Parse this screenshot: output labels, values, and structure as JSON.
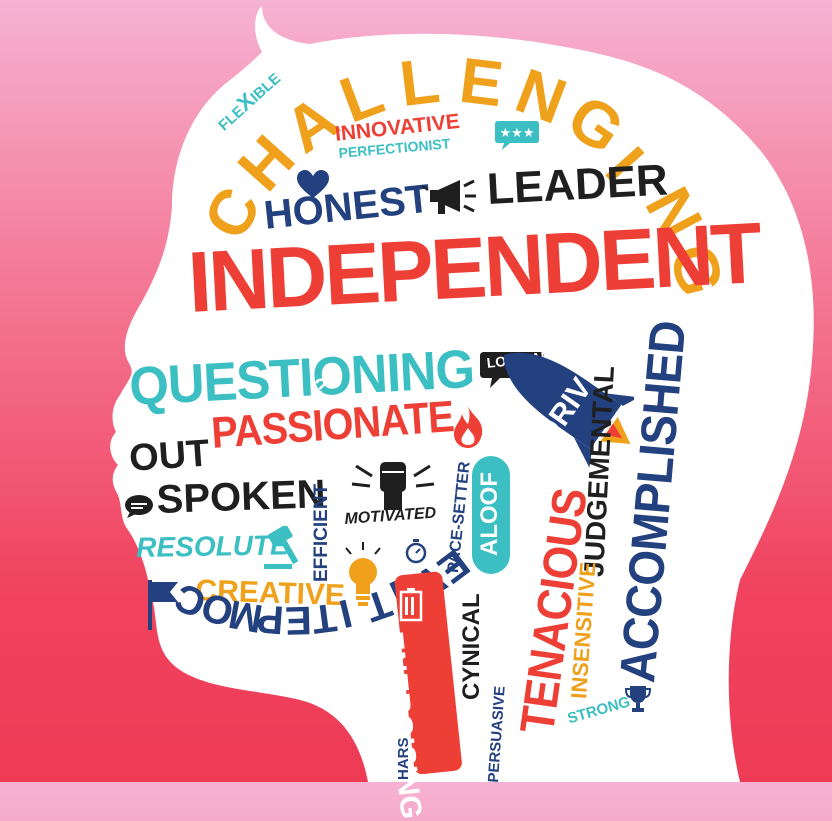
{
  "words": {
    "challenging": "CHALLENGING",
    "flexible_a": "FLE",
    "flexible_x": "X",
    "flexible_b": "IBLE",
    "innovative": "INNOVATIVE",
    "perfectionist": "PERFECTIONIST",
    "honest": "HONEST",
    "leader": "LEADER",
    "independent": "INDEPENDENT",
    "questioning": "QUESTIONING",
    "logical": "LOGICAL",
    "driven": "DRIVEN",
    "judgemental": "JUDGEMENTAL",
    "accomplished": "ACCOMPLISHED",
    "out": "OUT",
    "passionate": "PASSIONATE",
    "spoken": "SPOKEN",
    "efficient": "EFFICIENT",
    "motivated": "MOTIVATED",
    "pace_setter": "PACE-SETTER",
    "aloof": "ALOOF",
    "tenacious": "TENACIOUS",
    "resolute": "RESOLUTE",
    "creative": "CREATIVE",
    "cynical": "CYNICAL",
    "insensitive": "INSENSITIVE",
    "competitive": "COMPETITIVE",
    "energising": "ENERGISING",
    "persuasive": "PERSUASIVE",
    "strong": "STRONG",
    "harsh": "HARS"
  },
  "icons": {
    "heart": "heart-icon",
    "stars_bubble": "stars-speech-bubble-icon",
    "megaphone": "megaphone-icon",
    "rocket": "rocket-icon",
    "flame": "flame-icon",
    "fist": "raised-fist-icon",
    "stopwatch": "stopwatch-icon",
    "gavel": "gavel-icon",
    "lightbulb": "lightbulb-icon",
    "flag": "flag-icon",
    "battery": "battery-icon",
    "trophy": "trophy-icon",
    "question": "question-mark-icon",
    "speech": "speech-bubble-icon"
  },
  "colors": {
    "orange": "#f0a11c",
    "red": "#ee3f36",
    "teal": "#3bbfc3",
    "navy": "#23407f",
    "black": "#1f1f1f",
    "white": "#ffffff"
  }
}
